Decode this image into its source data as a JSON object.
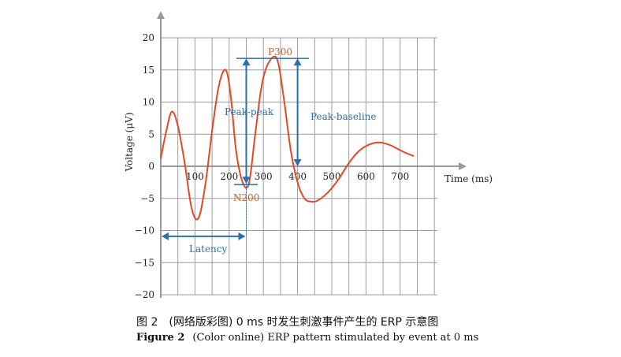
{
  "chart_data": {
    "type": "line",
    "title": "",
    "xlabel": "Time (ms)",
    "ylabel": "Voltage (μV)",
    "xlim": [
      0,
      830
    ],
    "ylim": [
      -20,
      20
    ],
    "x_ticks": [
      100,
      200,
      300,
      400,
      500,
      600,
      700
    ],
    "x_tick_labels": [
      "100",
      "200",
      "300",
      "400",
      "500",
      "600",
      "700"
    ],
    "y_ticks": [
      20,
      15,
      10,
      5,
      0,
      -5,
      -10,
      -15,
      -20
    ],
    "y_tick_labels": [
      "20",
      "15",
      "10",
      "5",
      "0",
      "−5",
      "−10",
      "−15",
      "−20"
    ],
    "grid": true,
    "series": [
      {
        "name": "",
        "color": "#e04a2a",
        "x": [
          0,
          15,
          32,
          50,
          70,
          90,
          110,
          130,
          150,
          170,
          190,
          205,
          220,
          240,
          258,
          275,
          295,
          315,
          340,
          360,
          380,
          400,
          420,
          440,
          460,
          490,
          520,
          550,
          580,
          610,
          640,
          670,
          700,
          720,
          740
        ],
        "y": [
          1.2,
          5.2,
          8.5,
          6.3,
          0.5,
          -6.5,
          -8.1,
          -3.0,
          5.5,
          12.6,
          15.0,
          10.8,
          2.5,
          -2.6,
          -2.6,
          4.5,
          12.5,
          16.1,
          16.7,
          10.5,
          2.5,
          -2.5,
          -5.0,
          -5.5,
          -5.3,
          -4.0,
          -2.0,
          0.5,
          2.4,
          3.4,
          3.7,
          3.3,
          2.5,
          2.0,
          1.6
        ]
      }
    ],
    "annotations": {
      "p300": "P300",
      "n200": "N200",
      "peak_peak": "Peak-peak",
      "peak_baseline": "Peak-baseline",
      "latency": "Latency"
    },
    "colors": {
      "curve": "#e04a2a",
      "annotation": "#2d6fa8",
      "component_label": "#c8602e",
      "grid": "#9d9d9d",
      "axis": "#999999",
      "text": "#222222"
    }
  },
  "caption": {
    "cn": "图 2　(网络版彩图) 0 ms 时发生刺激事件产生的 ERP 示意图",
    "en_label": "Figure 2",
    "en_text": "(Color online) ERP pattern stimulated by event at 0 ms"
  }
}
